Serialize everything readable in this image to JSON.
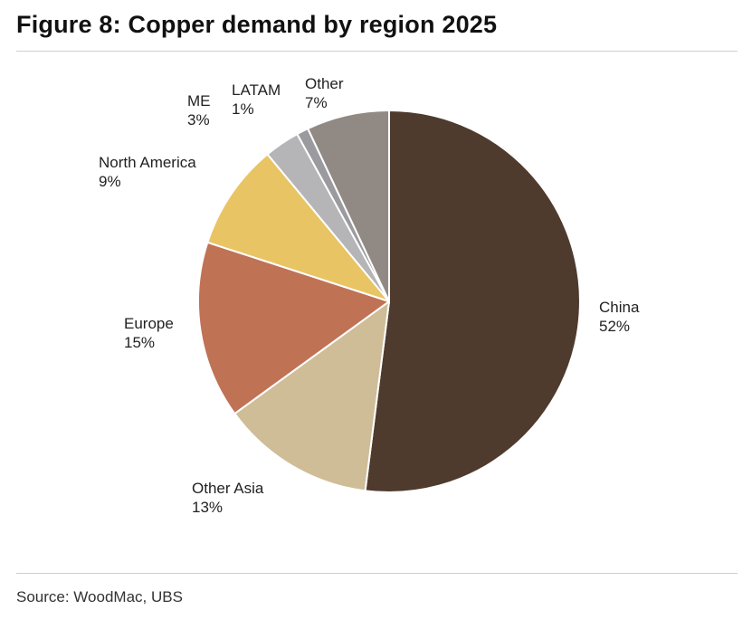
{
  "title": "Figure 8: Copper demand by region 2025",
  "source": "Source: WoodMac, UBS",
  "chart_data": {
    "type": "pie",
    "title": "Figure 8: Copper demand by region 2025",
    "start_angle_deg": 0,
    "direction": "clockwise",
    "slices": [
      {
        "label": "China",
        "value": 52,
        "value_label": "52%",
        "color": "#4e3b2d"
      },
      {
        "label": "Other Asia",
        "value": 13,
        "value_label": "13%",
        "color": "#cfbd98"
      },
      {
        "label": "Europe",
        "value": 15,
        "value_label": "15%",
        "color": "#c07255"
      },
      {
        "label": "North America",
        "value": 9,
        "value_label": "9%",
        "color": "#e8c464"
      },
      {
        "label": "ME",
        "value": 3,
        "value_label": "3%",
        "color": "#b5b4b6"
      },
      {
        "label": "LATAM",
        "value": 1,
        "value_label": "1%",
        "color": "#9b9a9e"
      },
      {
        "label": "Other",
        "value": 7,
        "value_label": "7%",
        "color": "#918a84"
      }
    ]
  }
}
